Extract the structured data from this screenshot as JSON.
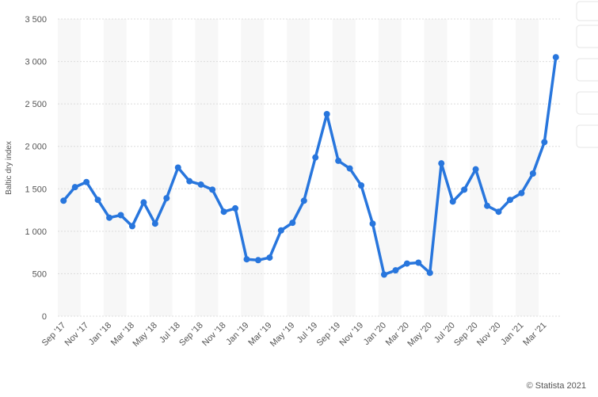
{
  "chart_data": {
    "type": "line",
    "y_axis_label": "Baltic dry index",
    "credit": "© Statista 2021",
    "categories": [
      "Sep '17",
      null,
      "Nov '17",
      null,
      "Jan '18",
      null,
      "Mar '18",
      null,
      "May '18",
      null,
      "Jul '18",
      null,
      "Sep '18",
      null,
      "Nov '18",
      null,
      "Jan '19",
      null,
      "Mar '19",
      null,
      "May '19",
      null,
      "Jul '19",
      null,
      "Sep '19",
      null,
      "Nov '19",
      null,
      "Jan '20",
      null,
      "Mar '20",
      null,
      "May '20",
      null,
      "Jul '20",
      null,
      "Sep '20",
      null,
      "Nov '20",
      null,
      "Jan '21",
      null,
      "Mar '21",
      null
    ],
    "series": [
      {
        "name": "Baltic dry index",
        "color": "#2876dd",
        "values": [
          1360,
          1520,
          1580,
          1370,
          1160,
          1190,
          1060,
          1340,
          1090,
          1390,
          1750,
          1590,
          1550,
          1490,
          1230,
          1270,
          670,
          660,
          690,
          1010,
          1100,
          1360,
          1870,
          2380,
          1830,
          1740,
          1540,
          1090,
          490,
          540,
          620,
          630,
          510,
          1800,
          1350,
          1490,
          1730,
          1300,
          1230,
          1370,
          1450,
          1680,
          2050,
          3050
        ]
      }
    ],
    "ylim": [
      0,
      3500
    ],
    "yticks": [
      0,
      500,
      {
        "value": 1000,
        "label": "1 000"
      },
      {
        "value": 1500,
        "label": "1 500"
      },
      {
        "value": 2000,
        "label": "2 000"
      },
      {
        "value": 2500,
        "label": "2 500"
      },
      {
        "value": 3000,
        "label": "3 000"
      },
      {
        "value": 3500,
        "label": "3 500"
      }
    ],
    "grid": true
  }
}
